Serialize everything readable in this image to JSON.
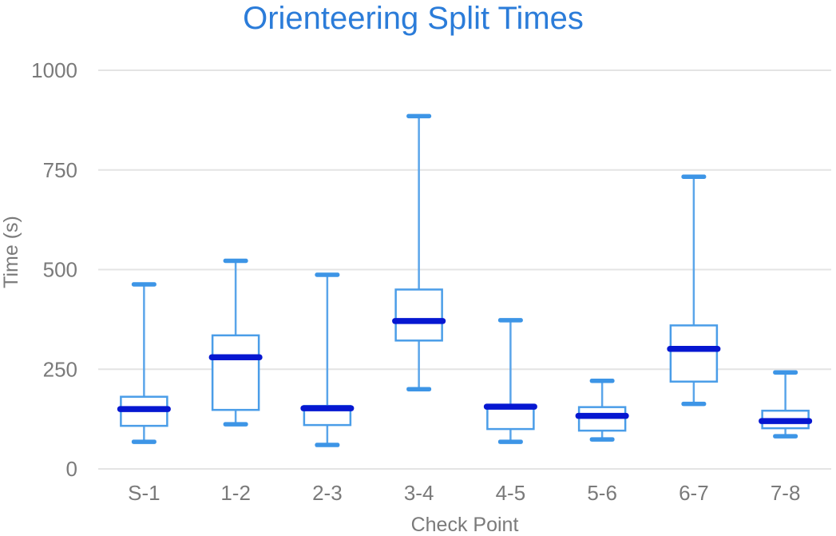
{
  "chart_data": {
    "type": "boxplot",
    "title": "Orienteering Split Times",
    "xlabel": "Check Point",
    "ylabel": "Time (s)",
    "ylim": [
      0,
      1000
    ],
    "yticks": [
      0,
      250,
      500,
      750,
      1000
    ],
    "grid": true,
    "legend": false,
    "categories": [
      "S-1",
      "1-2",
      "2-3",
      "3-4",
      "4-5",
      "5-6",
      "6-7",
      "7-8"
    ],
    "series": [
      {
        "label": "S-1",
        "min": 68,
        "q1": 108,
        "median": 150,
        "q3": 181,
        "max": 463
      },
      {
        "label": "1-2",
        "min": 112,
        "q1": 148,
        "median": 280,
        "q3": 335,
        "max": 522
      },
      {
        "label": "2-3",
        "min": 60,
        "q1": 110,
        "median": 152,
        "q3": 158,
        "max": 487
      },
      {
        "label": "3-4",
        "min": 200,
        "q1": 322,
        "median": 371,
        "q3": 450,
        "max": 885
      },
      {
        "label": "4-5",
        "min": 68,
        "q1": 100,
        "median": 156,
        "q3": 161,
        "max": 373
      },
      {
        "label": "5-6",
        "min": 74,
        "q1": 96,
        "median": 133,
        "q3": 155,
        "max": 221
      },
      {
        "label": "6-7",
        "min": 163,
        "q1": 219,
        "median": 301,
        "q3": 360,
        "max": 733
      },
      {
        "label": "7-8",
        "min": 82,
        "q1": 102,
        "median": 120,
        "q3": 146,
        "max": 242
      }
    ],
    "colors": {
      "title": "#2b7cd9",
      "box_stroke": "#4a9de8",
      "box_fill": "#ffffff",
      "whisker_line": "#5aa5ea",
      "cap": "#3d95e6",
      "median": "#0617d1",
      "grid": "#e4e4e4",
      "tick_text": "#7a7a7a",
      "axis_title_text": "#7a7a7a"
    }
  }
}
